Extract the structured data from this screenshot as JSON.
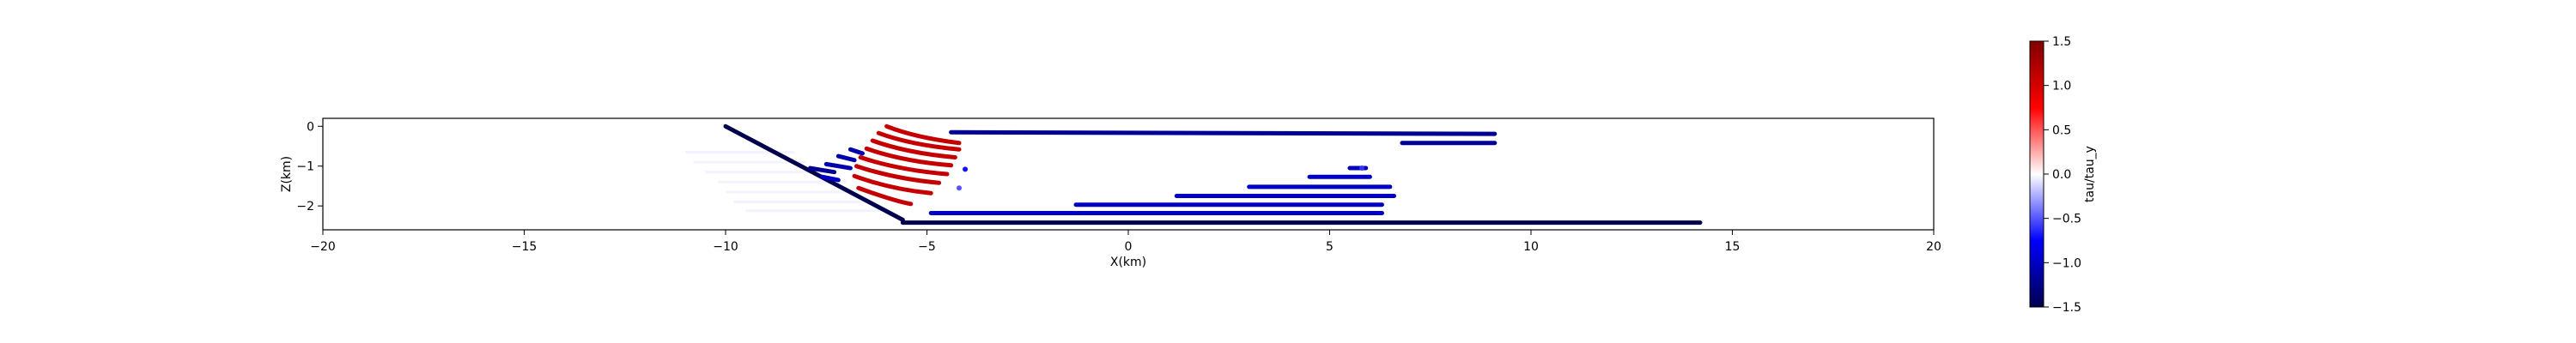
{
  "chart_data": {
    "type": "scatter",
    "title": "",
    "xlabel": "X(km)",
    "ylabel": "Z(km)",
    "xlim": [
      -20,
      20
    ],
    "ylim": [
      -2.6,
      0.2
    ],
    "xticks": [
      -20,
      -15,
      -10,
      -5,
      0,
      5,
      10,
      15,
      20
    ],
    "xtick_labels": [
      "−20",
      "−15",
      "−10",
      "−5",
      "0",
      "5",
      "10",
      "15",
      "20"
    ],
    "yticks": [
      0,
      -1,
      -2
    ],
    "ytick_labels": [
      "0",
      "−1",
      "−2"
    ],
    "grid": false,
    "colorbar": {
      "label": "tau/tau_y",
      "colormap": "seismic",
      "range": [
        -1.5,
        1.5
      ],
      "ticks": [
        1.5,
        1.0,
        0.5,
        0.0,
        -0.5,
        -1.0,
        -1.5
      ],
      "tick_labels": [
        "1.5",
        "1.0",
        "0.5",
        "0.0",
        "−0.5",
        "−1.0",
        "−1.5"
      ],
      "colors": [
        "#00004d",
        "#0000ff",
        "#ffffff",
        "#ff0000",
        "#800000"
      ]
    },
    "segments": [
      {
        "x": [
          -10.0,
          -5.6
        ],
        "z": [
          0.0,
          -2.35
        ],
        "value": -1.5
      },
      {
        "x": [
          -5.6,
          14.2
        ],
        "z": [
          -2.42,
          -2.42
        ],
        "value": -1.5
      },
      {
        "x": [
          -4.4,
          9.1
        ],
        "z": [
          -0.15,
          -0.19
        ],
        "value": -1.2
      },
      {
        "x": [
          6.8,
          9.1
        ],
        "z": [
          -0.42,
          -0.42
        ],
        "value": -1.2
      },
      {
        "x": [
          -4.9,
          6.3
        ],
        "z": [
          -2.18,
          -2.18
        ],
        "value": -1.0
      },
      {
        "x": [
          -1.3,
          6.3
        ],
        "z": [
          -1.97,
          -1.97
        ],
        "value": -1.0
      },
      {
        "x": [
          1.2,
          6.6
        ],
        "z": [
          -1.75,
          -1.75
        ],
        "value": -1.0
      },
      {
        "x": [
          3.0,
          6.5
        ],
        "z": [
          -1.52,
          -1.52
        ],
        "value": -1.0
      },
      {
        "x": [
          4.5,
          6.0
        ],
        "z": [
          -1.27,
          -1.27
        ],
        "value": -1.0
      },
      {
        "x": [
          5.5,
          5.9
        ],
        "z": [
          -1.05,
          -1.05
        ],
        "value": -1.0
      }
    ],
    "curves": [
      {
        "value": 1.1,
        "points": [
          [
            -6.0,
            0.0
          ],
          [
            -5.3,
            -0.28
          ],
          [
            -4.2,
            -0.42
          ]
        ]
      },
      {
        "value": 1.1,
        "points": [
          [
            -6.2,
            -0.17
          ],
          [
            -5.4,
            -0.47
          ],
          [
            -4.2,
            -0.58
          ]
        ]
      },
      {
        "value": 1.1,
        "points": [
          [
            -6.35,
            -0.36
          ],
          [
            -5.5,
            -0.67
          ],
          [
            -4.3,
            -0.78
          ]
        ]
      },
      {
        "value": 1.1,
        "points": [
          [
            -6.5,
            -0.56
          ],
          [
            -5.6,
            -0.88
          ],
          [
            -4.4,
            -0.98
          ]
        ]
      },
      {
        "value": 1.1,
        "points": [
          [
            -6.65,
            -0.78
          ],
          [
            -5.7,
            -1.1
          ],
          [
            -4.5,
            -1.2
          ]
        ]
      },
      {
        "value": 1.1,
        "points": [
          [
            -6.75,
            -1.0
          ],
          [
            -5.8,
            -1.32
          ],
          [
            -4.7,
            -1.42
          ]
        ]
      },
      {
        "value": 1.1,
        "points": [
          [
            -6.8,
            -1.25
          ],
          [
            -5.9,
            -1.58
          ],
          [
            -4.9,
            -1.68
          ]
        ]
      },
      {
        "value": 1.1,
        "points": [
          [
            -6.7,
            -1.55
          ],
          [
            -5.8,
            -1.88
          ],
          [
            -5.4,
            -1.95
          ]
        ]
      }
    ],
    "small_segments": [
      {
        "x": [
          -6.9,
          -6.6
        ],
        "z": [
          -0.58,
          -0.68
        ],
        "value": -1.1
      },
      {
        "x": [
          -7.2,
          -6.8
        ],
        "z": [
          -0.75,
          -0.85
        ],
        "value": -1.1
      },
      {
        "x": [
          -7.5,
          -6.9
        ],
        "z": [
          -0.95,
          -1.05
        ],
        "value": -1.1
      },
      {
        "x": [
          -7.9,
          -7.3
        ],
        "z": [
          -1.05,
          -1.15
        ],
        "value": -1.2
      },
      {
        "x": [
          -7.6,
          -7.2
        ],
        "z": [
          -1.27,
          -1.35
        ],
        "value": -1.0
      }
    ],
    "faint_segments": [
      {
        "x": [
          -11.0,
          -8.3
        ],
        "z": [
          -0.65,
          -0.65
        ],
        "value": -0.1
      },
      {
        "x": [
          -10.8,
          -8.0
        ],
        "z": [
          -0.9,
          -0.9
        ],
        "value": -0.1
      },
      {
        "x": [
          -10.5,
          -7.5
        ],
        "z": [
          -1.15,
          -1.15
        ],
        "value": -0.1
      },
      {
        "x": [
          -10.2,
          -7.0
        ],
        "z": [
          -1.4,
          -1.4
        ],
        "value": -0.1
      },
      {
        "x": [
          -10.0,
          -6.8
        ],
        "z": [
          -1.65,
          -1.65
        ],
        "value": -0.1
      },
      {
        "x": [
          -9.8,
          -6.5
        ],
        "z": [
          -1.9,
          -1.9
        ],
        "value": -0.1
      },
      {
        "x": [
          -9.5,
          -6.2
        ],
        "z": [
          -2.12,
          -2.12
        ],
        "value": -0.1
      }
    ],
    "dots": [
      {
        "x": -4.05,
        "z": -1.08,
        "value": -0.7
      },
      {
        "x": -4.2,
        "z": -1.55,
        "value": -0.5
      },
      {
        "x": 5.8,
        "z": -1.05,
        "value": -0.6
      }
    ]
  }
}
